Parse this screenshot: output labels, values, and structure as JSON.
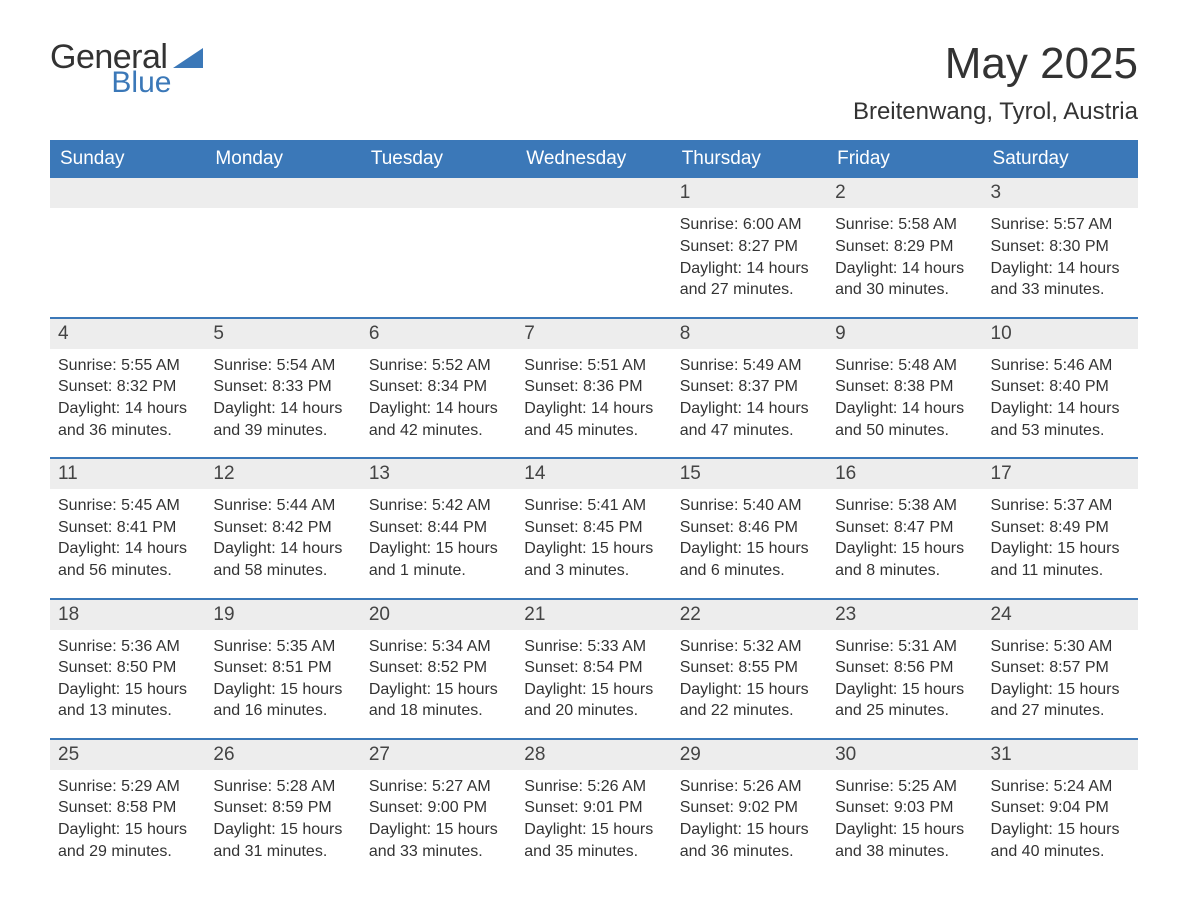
{
  "brand": {
    "word1": "General",
    "word2": "Blue",
    "shape_color": "#3b78b8",
    "text_color_dark": "#333333"
  },
  "title": {
    "month": "May 2025",
    "location": "Breitenwang, Tyrol, Austria"
  },
  "theme": {
    "header_bg": "#3b78b8",
    "header_text": "#ffffff",
    "daynum_bg": "#ededed",
    "rule_color": "#3b78b8",
    "body_text": "#333333",
    "page_bg": "#ffffff"
  },
  "calendar": {
    "type": "table",
    "weekdays": [
      "Sunday",
      "Monday",
      "Tuesday",
      "Wednesday",
      "Thursday",
      "Friday",
      "Saturday"
    ],
    "weeks": [
      [
        {
          "blank": true
        },
        {
          "blank": true
        },
        {
          "blank": true
        },
        {
          "blank": true
        },
        {
          "n": "1",
          "sunrise": "6:00 AM",
          "sunset": "8:27 PM",
          "daylight": "14 hours and 27 minutes."
        },
        {
          "n": "2",
          "sunrise": "5:58 AM",
          "sunset": "8:29 PM",
          "daylight": "14 hours and 30 minutes."
        },
        {
          "n": "3",
          "sunrise": "5:57 AM",
          "sunset": "8:30 PM",
          "daylight": "14 hours and 33 minutes."
        }
      ],
      [
        {
          "n": "4",
          "sunrise": "5:55 AM",
          "sunset": "8:32 PM",
          "daylight": "14 hours and 36 minutes."
        },
        {
          "n": "5",
          "sunrise": "5:54 AM",
          "sunset": "8:33 PM",
          "daylight": "14 hours and 39 minutes."
        },
        {
          "n": "6",
          "sunrise": "5:52 AM",
          "sunset": "8:34 PM",
          "daylight": "14 hours and 42 minutes."
        },
        {
          "n": "7",
          "sunrise": "5:51 AM",
          "sunset": "8:36 PM",
          "daylight": "14 hours and 45 minutes."
        },
        {
          "n": "8",
          "sunrise": "5:49 AM",
          "sunset": "8:37 PM",
          "daylight": "14 hours and 47 minutes."
        },
        {
          "n": "9",
          "sunrise": "5:48 AM",
          "sunset": "8:38 PM",
          "daylight": "14 hours and 50 minutes."
        },
        {
          "n": "10",
          "sunrise": "5:46 AM",
          "sunset": "8:40 PM",
          "daylight": "14 hours and 53 minutes."
        }
      ],
      [
        {
          "n": "11",
          "sunrise": "5:45 AM",
          "sunset": "8:41 PM",
          "daylight": "14 hours and 56 minutes."
        },
        {
          "n": "12",
          "sunrise": "5:44 AM",
          "sunset": "8:42 PM",
          "daylight": "14 hours and 58 minutes."
        },
        {
          "n": "13",
          "sunrise": "5:42 AM",
          "sunset": "8:44 PM",
          "daylight": "15 hours and 1 minute."
        },
        {
          "n": "14",
          "sunrise": "5:41 AM",
          "sunset": "8:45 PM",
          "daylight": "15 hours and 3 minutes."
        },
        {
          "n": "15",
          "sunrise": "5:40 AM",
          "sunset": "8:46 PM",
          "daylight": "15 hours and 6 minutes."
        },
        {
          "n": "16",
          "sunrise": "5:38 AM",
          "sunset": "8:47 PM",
          "daylight": "15 hours and 8 minutes."
        },
        {
          "n": "17",
          "sunrise": "5:37 AM",
          "sunset": "8:49 PM",
          "daylight": "15 hours and 11 minutes."
        }
      ],
      [
        {
          "n": "18",
          "sunrise": "5:36 AM",
          "sunset": "8:50 PM",
          "daylight": "15 hours and 13 minutes."
        },
        {
          "n": "19",
          "sunrise": "5:35 AM",
          "sunset": "8:51 PM",
          "daylight": "15 hours and 16 minutes."
        },
        {
          "n": "20",
          "sunrise": "5:34 AM",
          "sunset": "8:52 PM",
          "daylight": "15 hours and 18 minutes."
        },
        {
          "n": "21",
          "sunrise": "5:33 AM",
          "sunset": "8:54 PM",
          "daylight": "15 hours and 20 minutes."
        },
        {
          "n": "22",
          "sunrise": "5:32 AM",
          "sunset": "8:55 PM",
          "daylight": "15 hours and 22 minutes."
        },
        {
          "n": "23",
          "sunrise": "5:31 AM",
          "sunset": "8:56 PM",
          "daylight": "15 hours and 25 minutes."
        },
        {
          "n": "24",
          "sunrise": "5:30 AM",
          "sunset": "8:57 PM",
          "daylight": "15 hours and 27 minutes."
        }
      ],
      [
        {
          "n": "25",
          "sunrise": "5:29 AM",
          "sunset": "8:58 PM",
          "daylight": "15 hours and 29 minutes."
        },
        {
          "n": "26",
          "sunrise": "5:28 AM",
          "sunset": "8:59 PM",
          "daylight": "15 hours and 31 minutes."
        },
        {
          "n": "27",
          "sunrise": "5:27 AM",
          "sunset": "9:00 PM",
          "daylight": "15 hours and 33 minutes."
        },
        {
          "n": "28",
          "sunrise": "5:26 AM",
          "sunset": "9:01 PM",
          "daylight": "15 hours and 35 minutes."
        },
        {
          "n": "29",
          "sunrise": "5:26 AM",
          "sunset": "9:02 PM",
          "daylight": "15 hours and 36 minutes."
        },
        {
          "n": "30",
          "sunrise": "5:25 AM",
          "sunset": "9:03 PM",
          "daylight": "15 hours and 38 minutes."
        },
        {
          "n": "31",
          "sunrise": "5:24 AM",
          "sunset": "9:04 PM",
          "daylight": "15 hours and 40 minutes."
        }
      ]
    ],
    "labels": {
      "sunrise_prefix": "Sunrise: ",
      "sunset_prefix": "Sunset: ",
      "daylight_prefix": "Daylight: "
    }
  }
}
